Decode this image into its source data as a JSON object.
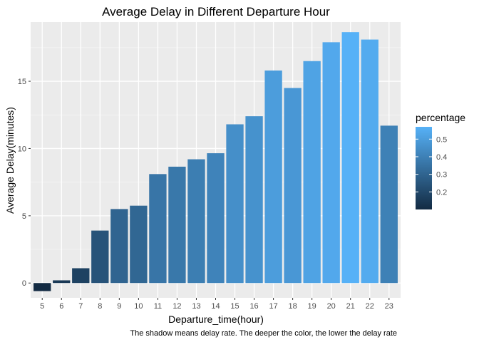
{
  "chart_data": {
    "type": "bar",
    "title": "Average Delay in Different Departure Hour",
    "xlabel": "Departure_time(hour)",
    "ylabel": "Average Delay(minutes)",
    "caption": "The shadow means delay rate. The deeper the color, the lower the delay rate",
    "ylim": [
      -1.1,
      19.4
    ],
    "y_ticks": [
      0,
      5,
      10,
      15
    ],
    "categories": [
      "5",
      "6",
      "7",
      "8",
      "9",
      "10",
      "11",
      "12",
      "13",
      "14",
      "15",
      "16",
      "17",
      "18",
      "19",
      "20",
      "21",
      "22",
      "23"
    ],
    "values": [
      -0.6,
      0.2,
      1.1,
      3.9,
      5.5,
      5.75,
      8.1,
      8.65,
      9.2,
      9.65,
      11.8,
      12.4,
      15.8,
      14.5,
      16.5,
      17.9,
      18.65,
      18.1,
      11.7
    ],
    "percentage": [
      0.1,
      0.15,
      0.18,
      0.24,
      0.3,
      0.31,
      0.36,
      0.37,
      0.39,
      0.41,
      0.45,
      0.46,
      0.5,
      0.48,
      0.52,
      0.54,
      0.57,
      0.55,
      0.4
    ],
    "fill_legend": {
      "title": "percentage",
      "ticks": [
        0.2,
        0.3,
        0.4,
        0.5
      ],
      "range": [
        0.1,
        0.57
      ],
      "low_color": "#132b43",
      "high_color": "#56b1f7"
    },
    "grid": true,
    "panel_background": "#ebebeb",
    "legend_position": "right"
  }
}
